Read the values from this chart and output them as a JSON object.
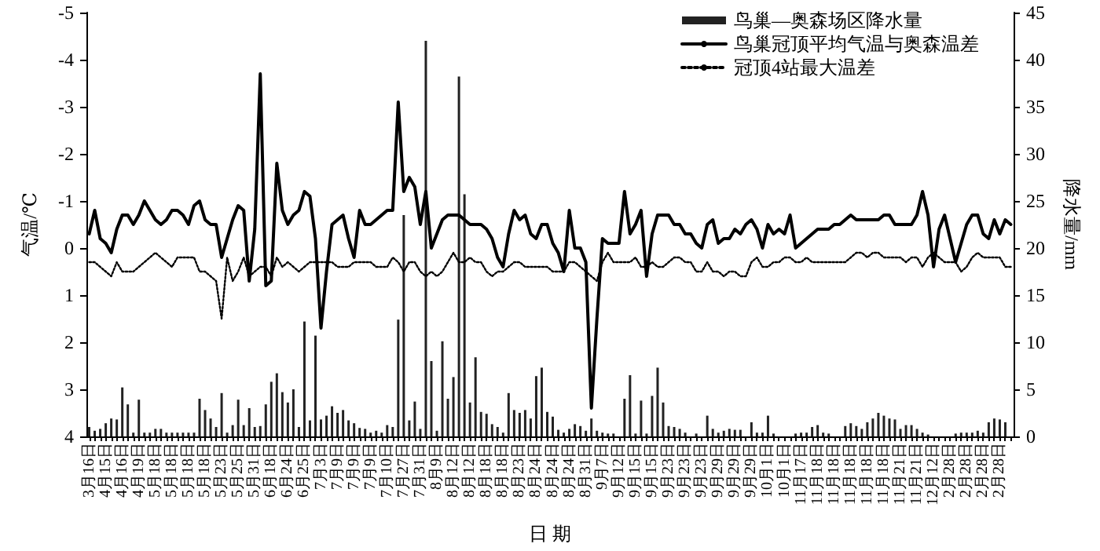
{
  "chart_data": {
    "type": "line",
    "xlabel": "日 期",
    "ylabel": "气温/℃",
    "y2label": "降水量/mm",
    "categories": [
      "3月16日",
      null,
      null,
      "4月15日",
      null,
      null,
      "4月16日",
      null,
      null,
      "4月19日",
      null,
      null,
      "5月18日",
      null,
      null,
      "5月18日",
      null,
      null,
      "5月18日",
      null,
      null,
      "5月18日",
      null,
      null,
      "5月23日",
      null,
      null,
      "5月25日",
      null,
      null,
      "5月31日",
      null,
      null,
      "6月18日",
      null,
      null,
      "6月24日",
      null,
      null,
      "6月25日",
      null,
      null,
      "7月3日",
      null,
      null,
      "7月9日",
      null,
      null,
      "7月9日",
      null,
      null,
      "7月9日",
      null,
      null,
      "7月10日",
      null,
      null,
      "7月27日",
      null,
      null,
      "7月31日",
      null,
      null,
      "8月9日",
      null,
      null,
      "8月12日",
      null,
      null,
      "8月12日",
      null,
      null,
      "8月18日",
      null,
      null,
      "8月18日",
      null,
      null,
      "8月23日",
      null,
      null,
      "8月24日",
      null,
      null,
      "8月24日",
      null,
      null,
      "8月24日",
      null,
      null,
      "8月31日",
      null,
      null,
      "9月7日",
      null,
      null,
      "9月12日",
      null,
      null,
      "9月15日",
      null,
      null,
      "9月15日",
      null,
      null,
      "9月23日",
      null,
      null,
      "9月23日",
      null,
      null,
      "9月23日",
      null,
      null,
      "9月29日",
      null,
      null,
      "9月29日",
      null,
      null,
      "9月29日",
      null,
      null,
      "10月1日",
      null,
      null,
      "10月1日",
      null,
      null,
      "11月17日",
      null,
      null,
      "11月18日",
      null,
      null,
      "11月18日",
      null,
      null,
      "11月18日",
      null,
      null,
      "11月18日",
      null,
      null,
      "11月18日",
      null,
      null,
      "11月21日",
      null,
      null,
      "11月21日",
      null,
      null,
      "12月12日",
      null,
      null,
      "2月28日",
      null,
      null,
      "2月28日",
      null,
      null,
      "2月28日",
      null,
      null,
      "2月28日",
      null,
      null
    ],
    "series": [
      {
        "name": "鸟巢—奥森场区降水量",
        "type": "bar",
        "axis": "y2",
        "color": "#222222",
        "values": [
          1.0,
          0.6,
          0.8,
          1.4,
          1.9,
          1.8,
          5.2,
          3.4,
          0.4,
          3.9,
          0.4,
          0.4,
          0.8,
          0.8,
          0.4,
          0.4,
          0.4,
          0.4,
          0.4,
          0.4,
          4.0,
          2.8,
          1.9,
          1.0,
          4.6,
          0.4,
          1.2,
          3.9,
          1.2,
          3.0,
          1.0,
          1.1,
          3.4,
          5.8,
          6.7,
          4.7,
          3.6,
          5.0,
          1.0,
          12.2,
          1.7,
          10.7,
          1.8,
          2.2,
          3.2,
          2.5,
          2.8,
          1.7,
          1.4,
          0.9,
          0.8,
          0.4,
          0.6,
          0.4,
          1.2,
          1.0,
          12.4,
          23.5,
          1.7,
          3.7,
          0.8,
          42.0,
          8.0,
          0.6,
          10.1,
          4.0,
          6.3,
          38.2,
          25.7,
          3.6,
          8.4,
          2.6,
          2.4,
          1.3,
          1.0,
          0.4,
          4.6,
          2.8,
          2.5,
          2.8,
          1.9,
          6.4,
          7.3,
          2.6,
          2.1,
          0.7,
          0.4,
          0.8,
          1.3,
          1.1,
          0.6,
          1.9,
          0.6,
          0.4,
          0.3,
          0.3,
          0,
          4.0,
          6.5,
          0.3,
          3.8,
          0.3,
          4.3,
          7.3,
          3.6,
          1.1,
          1.0,
          0.8,
          0.4,
          0,
          0.3,
          0,
          2.2,
          0.8,
          0.4,
          0.6,
          0.8,
          0.7,
          0.7,
          0,
          1.5,
          0.4,
          0.4,
          2.2,
          0.3,
          0,
          0,
          0,
          0.3,
          0.4,
          0.4,
          1.0,
          1.2,
          0.4,
          0.3,
          0,
          0,
          1.1,
          1.4,
          1.1,
          0.8,
          1.5,
          1.9,
          2.5,
          2.2,
          1.9,
          1.8,
          0.8,
          1.2,
          1.2,
          0.8,
          0.4,
          0.2,
          0,
          0,
          0,
          0,
          0.3,
          0.4,
          0.4,
          0.4,
          0.6,
          0.4,
          1.5,
          1.9,
          1.8,
          1.5,
          0
        ]
      },
      {
        "name": "鸟巢冠顶平均气温与奥森温差",
        "color": "#000000",
        "line_style": "solid",
        "values": [
          -0.3,
          -0.8,
          -0.2,
          -0.1,
          0.1,
          -0.4,
          -0.7,
          -0.7,
          -0.5,
          -0.7,
          -1.0,
          -0.8,
          -0.6,
          -0.5,
          -0.6,
          -0.8,
          -0.8,
          -0.7,
          -0.5,
          -0.9,
          -1.0,
          -0.6,
          -0.5,
          -0.5,
          0.2,
          -0.2,
          -0.6,
          -0.9,
          -0.8,
          0.7,
          -0.4,
          -3.7,
          0.8,
          0.7,
          -1.8,
          -0.8,
          -0.5,
          -0.7,
          -0.8,
          -1.2,
          -1.1,
          -0.2,
          1.7,
          0.5,
          -0.5,
          -0.6,
          -0.7,
          -0.2,
          0.2,
          -0.8,
          -0.5,
          -0.5,
          -0.6,
          -0.7,
          -0.8,
          -0.8,
          -3.1,
          -1.2,
          -1.5,
          -1.3,
          -0.5,
          -1.2,
          0,
          -0.3,
          -0.6,
          -0.7,
          -0.7,
          -0.7,
          -0.6,
          -0.5,
          -0.5,
          -0.5,
          -0.4,
          -0.2,
          0.2,
          0.4,
          -0.3,
          -0.8,
          -0.6,
          -0.7,
          -0.3,
          -0.2,
          -0.5,
          -0.5,
          -0.1,
          0.1,
          0.5,
          -0.8,
          0,
          0,
          0.3,
          3.4,
          1.5,
          -0.2,
          -0.1,
          -0.1,
          -0.1,
          -1.2,
          -0.3,
          -0.5,
          -0.8,
          0.6,
          -0.3,
          -0.7,
          -0.7,
          -0.7,
          -0.5,
          -0.5,
          -0.3,
          -0.3,
          -0.1,
          0,
          -0.5,
          -0.6,
          -0.1,
          -0.2,
          -0.2,
          -0.4,
          -0.3,
          -0.5,
          -0.6,
          -0.4,
          0,
          -0.5,
          -0.3,
          -0.4,
          -0.3,
          -0.7,
          0,
          -0.1,
          -0.2,
          -0.3,
          -0.4,
          -0.4,
          -0.4,
          -0.5,
          -0.5,
          -0.6,
          -0.7,
          -0.6,
          -0.6,
          -0.6,
          -0.6,
          -0.6,
          -0.7,
          -0.7,
          -0.5,
          -0.5,
          -0.5,
          -0.5,
          -0.7,
          -1.2,
          -0.7,
          0.4,
          -0.4,
          -0.7,
          -0.2,
          0.3,
          -0.1,
          -0.5,
          -0.7,
          -0.7,
          -0.3,
          -0.2,
          -0.6,
          -0.3,
          -0.6,
          -0.5
        ]
      },
      {
        "name": "冠顶4站最大温差",
        "color": "#000000",
        "line_style": "dotted",
        "values": [
          0.3,
          0.3,
          0.4,
          0.5,
          0.6,
          0.3,
          0.5,
          0.5,
          0.5,
          0.4,
          0.3,
          0.2,
          0.1,
          0.2,
          0.3,
          0.4,
          0.2,
          0.2,
          0.2,
          0.2,
          0.5,
          0.5,
          0.6,
          0.7,
          1.5,
          0.2,
          0.7,
          0.5,
          0.2,
          0.6,
          0.5,
          0.4,
          0.4,
          0.6,
          0.2,
          0.4,
          0.3,
          0.4,
          0.5,
          0.4,
          0.3,
          0.3,
          0.3,
          0.3,
          0.3,
          0.4,
          0.4,
          0.4,
          0.3,
          0.3,
          0.3,
          0.3,
          0.4,
          0.4,
          0.4,
          0.2,
          0.3,
          0.5,
          0.3,
          0.3,
          0.5,
          0.6,
          0.5,
          0.6,
          0.5,
          0.3,
          0.1,
          0.3,
          0.3,
          0.2,
          0.3,
          0.3,
          0.5,
          0.6,
          0.5,
          0.5,
          0.4,
          0.3,
          0.3,
          0.4,
          0.4,
          0.4,
          0.4,
          0.4,
          0.5,
          0.5,
          0.5,
          0.3,
          0.3,
          0.4,
          0.5,
          0.6,
          0.7,
          0.3,
          0.1,
          0.3,
          0.3,
          0.3,
          0.3,
          0.2,
          0.4,
          0.4,
          0.3,
          0.4,
          0.4,
          0.3,
          0.2,
          0.2,
          0.3,
          0.3,
          0.5,
          0.5,
          0.3,
          0.5,
          0.5,
          0.6,
          0.5,
          0.5,
          0.6,
          0.6,
          0.3,
          0.2,
          0.4,
          0.4,
          0.3,
          0.3,
          0.2,
          0.2,
          0.3,
          0.3,
          0.2,
          0.3,
          0.3,
          0.3,
          0.3,
          0.3,
          0.3,
          0.3,
          0.2,
          0.1,
          0.1,
          0.2,
          0.1,
          0.1,
          0.2,
          0.2,
          0.2,
          0.2,
          0.3,
          0.2,
          0.2,
          0.4,
          0.2,
          0.1,
          0.2,
          0.3,
          0.3,
          0.3,
          0.5,
          0.4,
          0.2,
          0.1,
          0.2,
          0.2,
          0.2,
          0.2,
          0.4,
          0.4
        ]
      }
    ],
    "ylim": [
      4,
      -5
    ],
    "yticks": [
      -5,
      -4,
      -3,
      -2,
      -1,
      0,
      1,
      2,
      3,
      4
    ],
    "y2lim": [
      0,
      45
    ],
    "y2ticks": [
      0,
      5,
      10,
      15,
      20,
      25,
      30,
      35,
      40,
      45
    ],
    "marker": "none",
    "grid": false,
    "legend": "top right"
  }
}
